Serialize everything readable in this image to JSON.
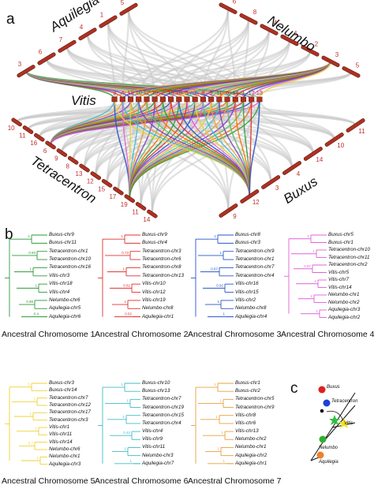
{
  "panel_a": {
    "label": "a",
    "species": {
      "aquilegia": "Aquilegia",
      "nelumbo": "Nelumbo",
      "vitis": "Vitis",
      "tetracentron": "Tetracentron",
      "buxus": "Buxus"
    },
    "vitis_chromosomes": [
      "3",
      "4",
      "18",
      "10",
      "12",
      "19",
      "2",
      "15",
      "16",
      "5",
      "7",
      "8",
      "9",
      "11",
      "6",
      "14",
      "1",
      "17",
      "13"
    ],
    "aquilegia_chromosomes": [
      "3",
      "6",
      "7",
      "4",
      "1",
      "5"
    ],
    "nelumbo_chromosomes": [
      "6",
      "8",
      "4",
      "1",
      "2",
      "3",
      "5"
    ],
    "tetracentron_chromosomes": [
      "10",
      "11",
      "16",
      "6",
      "9",
      "8",
      "13",
      "12",
      "15",
      "17",
      "19",
      "11",
      "14"
    ],
    "buxus_chromosomes": [
      "9",
      "12",
      "3",
      "4",
      "14",
      "10",
      "11"
    ]
  },
  "panel_b": {
    "label": "b",
    "trees": [
      {
        "title": "Ancestral Chromosome 1",
        "color": "#2e9a3a",
        "leaves": [
          "Buxus-chr9",
          "Buxus-chr11",
          "Tetracentron-chr1",
          "Tetracentron-chr10",
          "Tetracentron-chr16",
          "Vitis-chr3",
          "Vitis-chr18",
          "Vitis-chr4",
          "Nelumbo-chr6",
          "Aquilegia-chr5",
          "Aquilegia-chr6"
        ],
        "support": [
          "1",
          "0.93",
          "1",
          "1",
          "0.98",
          "0.4",
          "1",
          "1",
          "1"
        ]
      },
      {
        "title": "Ancestral Chromosome 2",
        "color": "#e03030",
        "leaves": [
          "Buxus-chr9",
          "Buxus-chr4",
          "Tetracentron-chr3",
          "Tetracentron-chr6",
          "Tetracentron-chr8",
          "Tetracentron-chr13",
          "Vitis-chr10",
          "Vitis-chr12",
          "Vitis-chr19",
          "Nelumbo-chr8",
          "Aquilegia-chr1"
        ],
        "support": [
          "1",
          "0.73",
          "1",
          "0.82",
          "1",
          "0.62",
          "1",
          "1",
          "1"
        ]
      },
      {
        "title": "Ancestral Chromosome 3",
        "color": "#2a55cc",
        "leaves": [
          "Buxus-chr8",
          "Buxus-chr3",
          "Tetracentron-chr9",
          "Tetracentron-chr1",
          "Tetracentron-chr7",
          "Tetracentron-chr4",
          "Vitis-chr16",
          "Vitis-chr15",
          "Vitis-chr2",
          "Nelumbo-chr8",
          "Aquilegia-chr4"
        ],
        "support": [
          "1",
          "1",
          "0.67",
          "0.92",
          "1",
          "1",
          "0.4",
          "1",
          "1"
        ]
      },
      {
        "title": "Ancestral Chromosome 4",
        "color": "#e060d8",
        "leaves": [
          "Buxus-chr5",
          "Buxus-chr1",
          "Tetracentron-chr10",
          "Tetracentron-chr11",
          "Tetracentron-chr2",
          "Vitis-chr5",
          "Vitis-chr7",
          "Vitis-chr14",
          "Nelumbo-chr1",
          "Nelumbo-chr2",
          "Aquilegia-chr3",
          "Aquilegia-chr2"
        ],
        "support": [
          "1",
          "1",
          "0.97",
          "1",
          "1",
          "1",
          "1",
          "1",
          "1"
        ]
      },
      {
        "title": "Ancestral Chromosome 5",
        "color": "#f0d030",
        "leaves": [
          "Buxus-chr3",
          "Buxus-chr14",
          "Tetracentron-chr7",
          "Tetracentron-chr12",
          "Tetracentron-chr17",
          "Tetracentron-chr3",
          "Vitis-chr1",
          "Vitis-chr11",
          "Vitis-chr14",
          "Nelumbo-chr6",
          "Nelumbo-chr1",
          "Aquilegia-chr3"
        ],
        "support": [
          "1",
          "1",
          "1",
          "1",
          "0.7",
          "1",
          "1",
          "1",
          "1"
        ]
      },
      {
        "title": "Ancestral Chromosome 6",
        "color": "#40bcc8",
        "leaves": [
          "Buxus-chr10",
          "Buxus-chr13",
          "Tetracentron-chr7",
          "Tetracentron-chr19",
          "Tetracentron-chr15",
          "Tetracentron-chr4",
          "Vitis-chr4",
          "Vitis-chr9",
          "Vitis-chr11",
          "Nelumbo-chr3",
          "Aquilegia-chr7"
        ],
        "support": [
          "1",
          "1",
          "1",
          "0.42",
          "1",
          "1",
          "0.53",
          "1",
          "1"
        ]
      },
      {
        "title": "Ancestral Chromosome 7",
        "color": "#e8a040",
        "leaves": [
          "Buxus-chr1",
          "Buxus-chr2",
          "Tetracentron-chr5",
          "Tetracentron-chr9",
          "Vitis-chr8",
          "Vitis-chr6",
          "Vitis-chr13",
          "Nelumbo-chr2",
          "Nelumbo-chr1",
          "Aquilegia-chr2",
          "Aquilegia-chr1"
        ],
        "support": [
          "1",
          "1",
          "1",
          "1",
          "1",
          "1",
          "1",
          "1",
          "1"
        ]
      }
    ]
  },
  "panel_c": {
    "label": "c",
    "taxa": [
      "Buxus",
      "Tetracentron",
      "Vitis",
      "Nelumbo",
      "Aquilegia"
    ],
    "node_colors": [
      "#e02020",
      "#2040d8",
      "#30b030",
      "#f0e020",
      "#f0802a"
    ]
  },
  "colors": {
    "bar_fill": "#b03020",
    "bar_stroke": "#5a1a10",
    "ribbon_gray": "#c8c8c8"
  }
}
